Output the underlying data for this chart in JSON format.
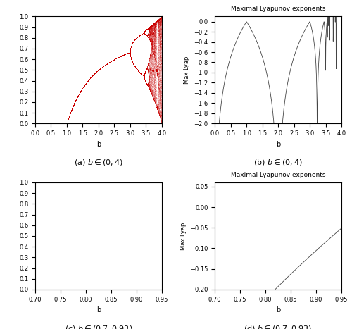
{
  "fig_width": 5.0,
  "fig_height": 4.67,
  "dpi": 100,
  "bifurc_color": "#CC0000",
  "lyap_color": "#444444",
  "lyap_title": "Maximal Lyapunov exponents",
  "xlabel": "b",
  "ylabel_lyap": "Max Lyap",
  "ax_a": {
    "xlim": [
      0,
      4
    ],
    "ylim": [
      0,
      1
    ]
  },
  "ax_b": {
    "xlim": [
      0,
      4
    ],
    "ylim": [
      -2,
      0.1
    ]
  },
  "ax_c": {
    "xlim": [
      0.7,
      0.95
    ],
    "ylim": [
      0,
      1
    ]
  },
  "ax_d": {
    "xlim": [
      0.7,
      0.95
    ],
    "ylim": [
      -0.2,
      0.06
    ]
  }
}
